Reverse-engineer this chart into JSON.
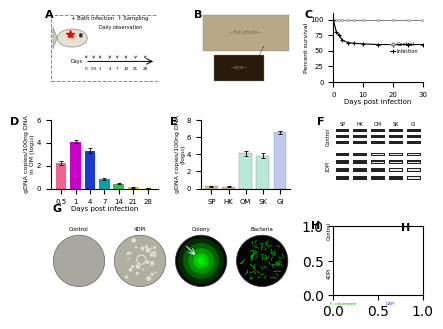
{
  "panel_D": {
    "days": [
      "0.5",
      "1",
      "4",
      "7",
      "14",
      "21",
      "28"
    ],
    "values": [
      2.25,
      4.1,
      3.3,
      0.85,
      0.45,
      0.12,
      0.06
    ],
    "errors": [
      0.18,
      0.15,
      0.22,
      0.1,
      0.07,
      0.04,
      0.02
    ],
    "colors": [
      "#f06292",
      "#c800c8",
      "#1a3ad4",
      "#00a0b0",
      "#3cb850",
      "#c8d400",
      "#ffff80"
    ],
    "xlabel": "Days post infection",
    "ylabel": "gDNA copies/100ng DNA\nin OM (log₁₀)",
    "ylim": [
      0,
      6
    ],
    "yticks": [
      0,
      2,
      4,
      6
    ]
  },
  "panel_E": {
    "categories": [
      "SP",
      "HK",
      "OM",
      "SK",
      "GI"
    ],
    "values": [
      0.28,
      0.22,
      4.1,
      3.85,
      6.55
    ],
    "errors": [
      0.06,
      0.05,
      0.28,
      0.32,
      0.18
    ],
    "colors": [
      "#d4c090",
      "#d4c090",
      "#b8e8d8",
      "#b8e8d8",
      "#c0c8f0"
    ],
    "xlabel": "",
    "ylabel": "gDNA copies/100ng DNA\n(log₁₀)",
    "ylim": [
      0,
      8
    ],
    "yticks": [
      0,
      2,
      4,
      6,
      8
    ]
  },
  "panel_C": {
    "days_control": [
      0,
      1,
      2,
      3,
      5,
      7,
      10,
      15,
      20,
      25,
      30
    ],
    "survival_control": [
      100,
      100,
      100,
      100,
      100,
      100,
      100,
      100,
      100,
      100,
      100
    ],
    "days_infection": [
      0,
      1,
      2,
      3,
      5,
      7,
      10,
      15,
      20,
      25,
      30
    ],
    "survival_infection": [
      100,
      80,
      75,
      67,
      63,
      62,
      61,
      60,
      60,
      60,
      60
    ],
    "xlabel": "Days post infection",
    "ylabel": "Percent survival",
    "ylim": [
      0,
      110
    ],
    "yticks": [
      0,
      25,
      50,
      75,
      100
    ]
  },
  "background_color": "#ffffff",
  "font_size": 6,
  "label_font_size": 8,
  "tick_font_size": 5
}
